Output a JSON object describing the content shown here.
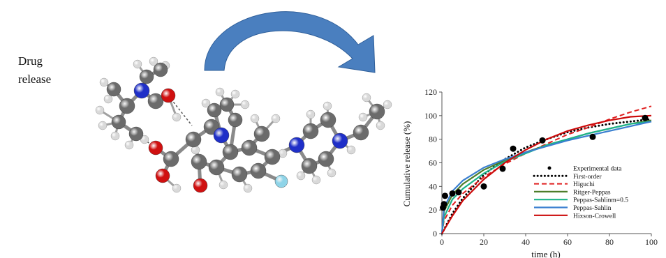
{
  "label": {
    "line1": "Drug",
    "line2": "release"
  },
  "colors": {
    "arrow": "#4a7fbf",
    "carbon": "#6b6b6b",
    "hydrogen": "#d9d9d9",
    "nitrogen": "#1f2fc8",
    "oxygen": "#d01010",
    "fluorine": "#8fd4e8"
  },
  "chart_data": {
    "type": "line",
    "xlabel": "time (h)",
    "ylabel": "Cumulative release (%)",
    "xlim": [
      0,
      100
    ],
    "ylim": [
      0,
      120
    ],
    "xticks": [
      0,
      20,
      40,
      60,
      80,
      100
    ],
    "yticks": [
      0,
      20,
      40,
      60,
      80,
      100,
      120
    ],
    "legend_position": "bottom-right",
    "series": [
      {
        "name": "Experimental data",
        "style": "points",
        "color": "#000000",
        "points": [
          [
            0.5,
            22
          ],
          [
            1,
            25
          ],
          [
            1.5,
            32
          ],
          [
            5,
            34
          ],
          [
            8,
            35
          ],
          [
            20,
            40
          ],
          [
            29,
            55
          ],
          [
            34,
            72
          ],
          [
            48,
            79
          ],
          [
            72,
            82
          ],
          [
            97,
            98
          ]
        ]
      },
      {
        "name": "First-order",
        "style": "dotted",
        "color": "#000000",
        "points": [
          [
            0,
            0
          ],
          [
            5,
            17
          ],
          [
            10,
            30
          ],
          [
            20,
            50
          ],
          [
            30,
            63
          ],
          [
            40,
            73
          ],
          [
            50,
            80
          ],
          [
            60,
            86
          ],
          [
            70,
            90
          ],
          [
            80,
            93
          ],
          [
            90,
            95
          ],
          [
            100,
            97
          ]
        ]
      },
      {
        "name": "Higuchi",
        "style": "dashed",
        "color": "#e02020",
        "points": [
          [
            0,
            0
          ],
          [
            1,
            11
          ],
          [
            5,
            24
          ],
          [
            10,
            34
          ],
          [
            20,
            48
          ],
          [
            30,
            59
          ],
          [
            40,
            68
          ],
          [
            50,
            76
          ],
          [
            60,
            84
          ],
          [
            70,
            90
          ],
          [
            80,
            97
          ],
          [
            90,
            103
          ],
          [
            100,
            108
          ]
        ]
      },
      {
        "name": "Ritger-Peppas",
        "style": "solid",
        "color": "#4e7d2a",
        "points": [
          [
            0,
            0
          ],
          [
            1,
            19
          ],
          [
            5,
            33
          ],
          [
            10,
            42
          ],
          [
            20,
            54
          ],
          [
            30,
            62
          ],
          [
            40,
            69
          ],
          [
            50,
            75
          ],
          [
            60,
            80
          ],
          [
            70,
            85
          ],
          [
            80,
            89
          ],
          [
            90,
            93
          ],
          [
            100,
            96
          ]
        ]
      },
      {
        "name": "Peppas-Sahlinm=0.5",
        "style": "solid",
        "color": "#1db38a",
        "points": [
          [
            0,
            0
          ],
          [
            1,
            14
          ],
          [
            5,
            29
          ],
          [
            10,
            38
          ],
          [
            20,
            51
          ],
          [
            30,
            61
          ],
          [
            40,
            68
          ],
          [
            50,
            75
          ],
          [
            60,
            80
          ],
          [
            70,
            85
          ],
          [
            80,
            89
          ],
          [
            90,
            93
          ],
          [
            100,
            95
          ]
        ]
      },
      {
        "name": "Peppas-Sahlin",
        "style": "solid",
        "color": "#3a7fd0",
        "points": [
          [
            0,
            0
          ],
          [
            1,
            22
          ],
          [
            5,
            36
          ],
          [
            10,
            45
          ],
          [
            20,
            56
          ],
          [
            30,
            63
          ],
          [
            40,
            69
          ],
          [
            50,
            74
          ],
          [
            60,
            79
          ],
          [
            70,
            83
          ],
          [
            80,
            87
          ],
          [
            90,
            91
          ],
          [
            100,
            95
          ]
        ]
      },
      {
        "name": "Hixson-Crowell",
        "style": "solid",
        "color": "#cc0a0a",
        "points": [
          [
            0,
            0
          ],
          [
            5,
            15
          ],
          [
            10,
            28
          ],
          [
            20,
            46
          ],
          [
            30,
            60
          ],
          [
            40,
            71
          ],
          [
            50,
            80
          ],
          [
            60,
            87
          ],
          [
            70,
            92
          ],
          [
            80,
            96
          ],
          [
            90,
            99
          ],
          [
            100,
            100
          ]
        ]
      }
    ]
  }
}
